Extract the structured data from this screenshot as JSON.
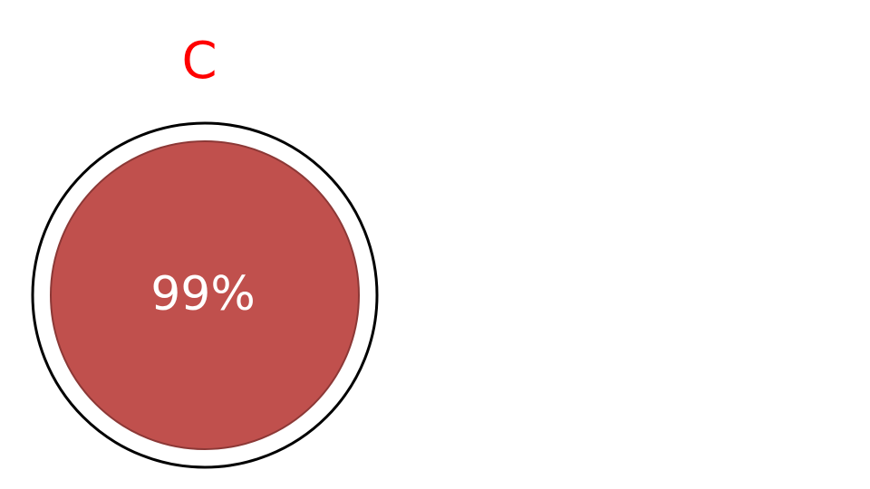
{
  "diagram": {
    "title": "C",
    "gauge_value_label": "99%",
    "gauge_value": 0.99
  },
  "colors": {
    "title": "#ff0000",
    "fill": "#c0504d",
    "fill_stroke": "#8c3836",
    "ring": "#000000",
    "value_text": "#ffffff"
  }
}
